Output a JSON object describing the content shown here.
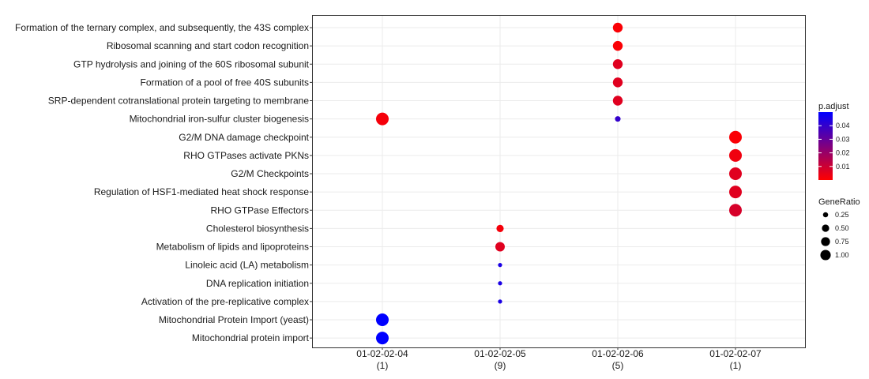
{
  "chart_data": {
    "type": "scatter",
    "title": "",
    "xlabel": "",
    "ylabel": "",
    "grid": true,
    "x_categories": [
      {
        "label": "01-02-02-04",
        "count": "(1)"
      },
      {
        "label": "01-02-02-05",
        "count": "(9)"
      },
      {
        "label": "01-02-02-06",
        "count": "(5)"
      },
      {
        "label": "01-02-02-07",
        "count": "(1)"
      }
    ],
    "y_categories": [
      "Formation of the ternary complex, and subsequently, the 43S complex",
      "Ribosomal scanning and start codon recognition",
      "GTP hydrolysis and joining of the 60S ribosomal subunit",
      "Formation of a pool of free 40S subunits",
      "SRP-dependent cotranslational protein targeting to membrane",
      "Mitochondrial iron-sulfur cluster biogenesis",
      "G2/M DNA damage checkpoint",
      "RHO GTPases activate PKNs",
      "G2/M Checkpoints",
      "Regulation of HSF1-mediated heat shock response",
      "RHO GTPase Effectors",
      "Cholesterol biosynthesis",
      "Metabolism of lipids and lipoproteins",
      "Linoleic acid (LA) metabolism",
      "DNA replication initiation",
      "Activation of the pre-replicative complex",
      "Mitochondrial Protein Import (yeast)",
      "Mitochondrial protein import"
    ],
    "points": [
      {
        "x": "01-02-02-06",
        "y": "Formation of the ternary complex, and subsequently, the 43S complex",
        "gene_ratio": 0.6,
        "p_adjust": 0.001
      },
      {
        "x": "01-02-02-06",
        "y": "Ribosomal scanning and start codon recognition",
        "gene_ratio": 0.6,
        "p_adjust": 0.001
      },
      {
        "x": "01-02-02-06",
        "y": "GTP hydrolysis and joining of the 60S ribosomal subunit",
        "gene_ratio": 0.6,
        "p_adjust": 0.006
      },
      {
        "x": "01-02-02-06",
        "y": "Formation of a pool of free 40S subunits",
        "gene_ratio": 0.6,
        "p_adjust": 0.006
      },
      {
        "x": "01-02-02-06",
        "y": "SRP-dependent cotranslational protein targeting to membrane",
        "gene_ratio": 0.6,
        "p_adjust": 0.006
      },
      {
        "x": "01-02-02-06",
        "y": "Mitochondrial iron-sulfur cluster biogenesis",
        "gene_ratio": 0.2,
        "p_adjust": 0.04
      },
      {
        "x": "01-02-02-04",
        "y": "Mitochondrial iron-sulfur cluster biogenesis",
        "gene_ratio": 1.0,
        "p_adjust": 0.002
      },
      {
        "x": "01-02-02-07",
        "y": "G2/M DNA damage checkpoint",
        "gene_ratio": 1.0,
        "p_adjust": 0.001
      },
      {
        "x": "01-02-02-07",
        "y": "RHO GTPases activate PKNs",
        "gene_ratio": 1.0,
        "p_adjust": 0.003
      },
      {
        "x": "01-02-02-07",
        "y": "G2/M Checkpoints",
        "gene_ratio": 1.0,
        "p_adjust": 0.006
      },
      {
        "x": "01-02-02-07",
        "y": "Regulation of HSF1-mediated heat shock response",
        "gene_ratio": 1.0,
        "p_adjust": 0.006
      },
      {
        "x": "01-02-02-07",
        "y": "RHO GTPase Effectors",
        "gene_ratio": 1.0,
        "p_adjust": 0.008
      },
      {
        "x": "01-02-02-05",
        "y": "Cholesterol biosynthesis",
        "gene_ratio": 0.33,
        "p_adjust": 0.002
      },
      {
        "x": "01-02-02-05",
        "y": "Metabolism of lipids and lipoproteins",
        "gene_ratio": 0.56,
        "p_adjust": 0.006
      },
      {
        "x": "01-02-02-05",
        "y": "Linoleic acid (LA) metabolism",
        "gene_ratio": 0.11,
        "p_adjust": 0.045
      },
      {
        "x": "01-02-02-05",
        "y": "DNA replication initiation",
        "gene_ratio": 0.11,
        "p_adjust": 0.045
      },
      {
        "x": "01-02-02-05",
        "y": "Activation of the pre-replicative complex",
        "gene_ratio": 0.11,
        "p_adjust": 0.045
      },
      {
        "x": "01-02-02-04",
        "y": "Mitochondrial Protein Import (yeast)",
        "gene_ratio": 1.0,
        "p_adjust": 0.05
      },
      {
        "x": "01-02-02-04",
        "y": "Mitochondrial protein import",
        "gene_ratio": 1.0,
        "p_adjust": 0.05
      }
    ],
    "color_legend": {
      "title": "p.adjust",
      "ticks": [
        0.04,
        0.03,
        0.02,
        0.01
      ],
      "range": [
        0.0,
        0.05
      ],
      "low_color": "#ff0000",
      "high_color": "#0000ff"
    },
    "size_legend": {
      "title": "GeneRatio",
      "ticks": [
        0.25,
        0.5,
        0.75,
        1.0
      ],
      "tick_labels": [
        "0.25",
        "0.50",
        "0.75",
        "1.00"
      ]
    },
    "colors": {
      "grid": "#ebebeb",
      "panel_border": "#333333"
    }
  }
}
